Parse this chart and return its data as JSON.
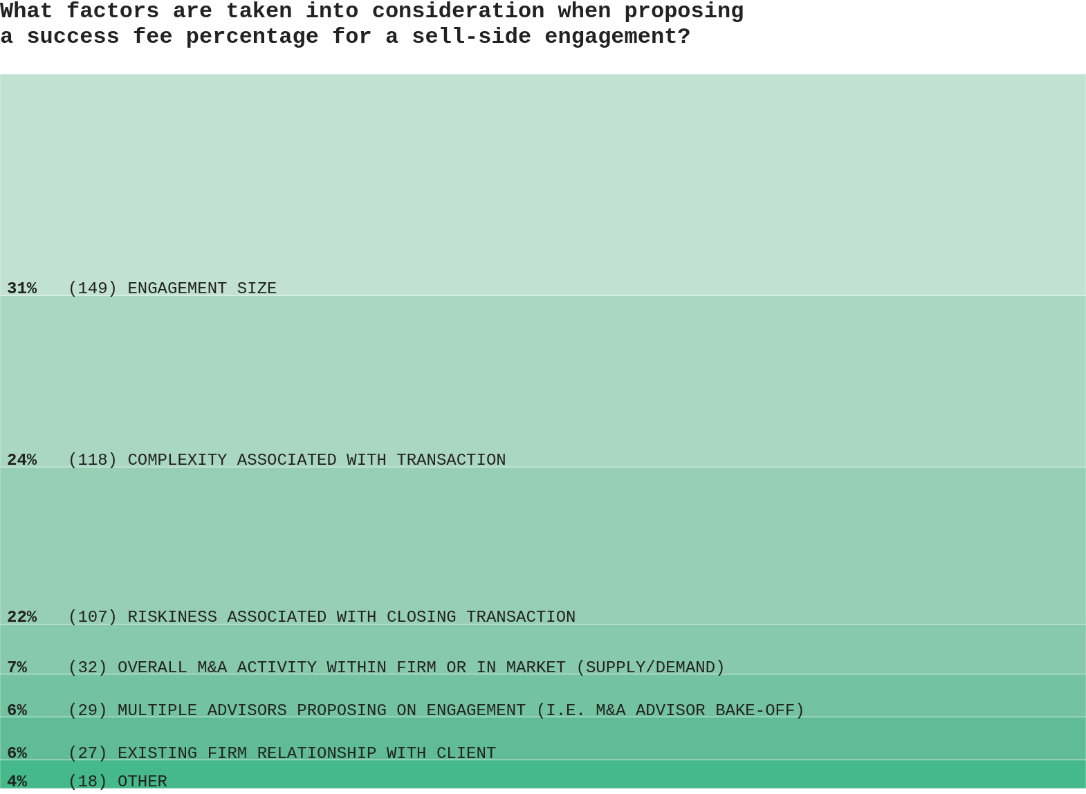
{
  "chart_data": {
    "type": "bar",
    "title": "What factors are taken into consideration when proposing\na success fee percentage for a sell-side engagement?",
    "categories": [
      null
    ],
    "stacked": true,
    "tick_labels": false,
    "series": [
      {
        "name": "(18) OTHER",
        "color": "#45b98a",
        "values": [
          4
        ],
        "value_labels": [
          "4%"
        ]
      },
      {
        "name": "(27) EXISTING FIRM RELATIONSHIP WITH CLIENT",
        "color": "#5fbc94",
        "values": [
          6
        ],
        "value_labels": [
          "6%"
        ]
      },
      {
        "name": "(29) MULTIPLE ADVISORS PROPOSING ON ENGAGEMENT (I.E. M&A ADVISOR BAKE-OFF)",
        "color": "#73c3a0",
        "values": [
          6
        ],
        "value_labels": [
          "6%"
        ]
      },
      {
        "name": "(32) OVERALL M&A ACTIVITY WITHIN FIRM OR IN MARKET (SUPPLY/DEMAND)",
        "color": "#87c9ab",
        "values": [
          7
        ],
        "value_labels": [
          "7%"
        ]
      },
      {
        "name": "(107) RISKINESS ASSOCIATED WITH CLOSING TRANSACTION",
        "color": "#96cfb4",
        "values": [
          22
        ],
        "value_labels": [
          "22%"
        ]
      },
      {
        "name": "(118) COMPLEXITY ASSOCIATED WITH TRANSACTION",
        "color": "#a9d7c1",
        "values": [
          24
        ],
        "value_labels": [
          "24%"
        ]
      },
      {
        "name": "(149) ENGAGEMENT SIZE",
        "color": "#c1e2d3",
        "values": [
          31
        ],
        "value_labels": [
          "31%"
        ]
      }
    ]
  }
}
